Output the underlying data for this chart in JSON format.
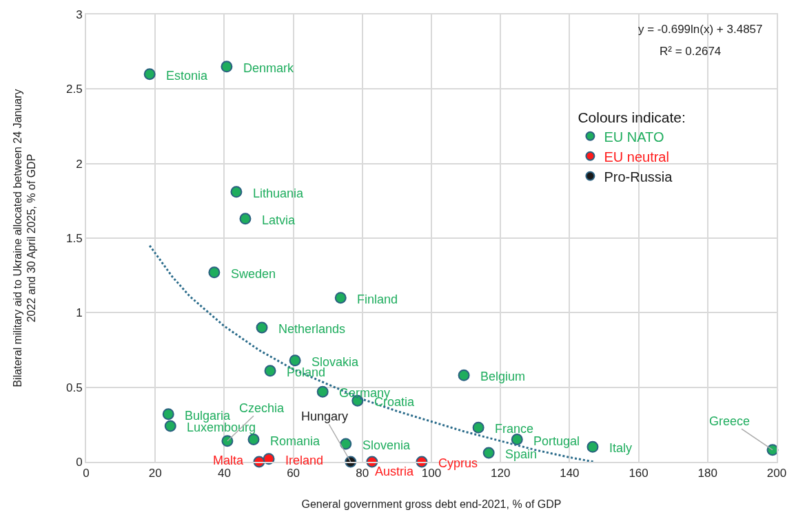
{
  "chart_data": {
    "type": "scatter",
    "xlabel": "General government gross debt end-2021, % of GDP",
    "ylabel": "Bilateral military aid to Ukraine allocated between 24 January 2022 and 30 April 2025, % of GDP",
    "legend_title": "Colours indicate:",
    "legend": "top right",
    "grid": true,
    "marker": "circle",
    "xlim": [
      0,
      200
    ],
    "xticks": [
      0,
      20,
      40,
      60,
      80,
      100,
      120,
      140,
      160,
      180,
      200
    ],
    "ylim": [
      0,
      3
    ],
    "yticks": [
      0,
      0.5,
      1,
      1.5,
      2,
      2.5,
      3
    ],
    "series": [
      {
        "name": "EU NATO",
        "color": "#1fad5e",
        "x": [
          18.4,
          40.7,
          43.5,
          46.1,
          37.1,
          73.7,
          50.9,
          60.5,
          53.3,
          109.4,
          68.5,
          78.6,
          23.8,
          24.4,
          113.6,
          40.9,
          48.5,
          75.2,
          124.8,
          116.6,
          146.7,
          198.8
        ],
        "values": [
          2.6,
          2.65,
          1.81,
          1.63,
          1.27,
          1.1,
          0.9,
          0.68,
          0.61,
          0.58,
          0.47,
          0.41,
          0.32,
          0.24,
          0.23,
          0.14,
          0.15,
          0.12,
          0.15,
          0.06,
          0.1,
          0.08
        ]
      },
      {
        "name": "EU neutral",
        "color": "#ff1a1a",
        "x": [
          50.1,
          52.9,
          82.8,
          97.2
        ],
        "values": [
          0,
          0.02,
          0,
          0
        ]
      },
      {
        "name": "Pro-Russia",
        "color": "#1a1a1a",
        "x": [
          76.6
        ],
        "values": [
          0
        ]
      },
      {
        "type": "line",
        "color": "#2a6b8a",
        "line_style": "dotted",
        "marker": "none",
        "x": [
          18.4,
          25,
          30,
          40,
          50,
          60,
          70,
          80,
          90,
          100,
          110,
          120,
          130,
          140,
          147
        ],
        "values": [
          1.45,
          1.24,
          1.11,
          0.91,
          0.75,
          0.62,
          0.52,
          0.42,
          0.34,
          0.27,
          0.2,
          0.14,
          0.08,
          0.03,
          0
        ]
      }
    ],
    "annotations": [
      {
        "text": "Estonia",
        "x": 18.4,
        "y": 2.6
      },
      {
        "text": "Denmark",
        "x": 40.7,
        "y": 2.65
      },
      {
        "text": "Lithuania",
        "x": 43.5,
        "y": 1.81
      },
      {
        "text": "Latvia",
        "x": 46.1,
        "y": 1.63
      },
      {
        "text": "Sweden",
        "x": 37.1,
        "y": 1.27
      },
      {
        "text": "Finland",
        "x": 73.7,
        "y": 1.1
      },
      {
        "text": "Netherlands",
        "x": 50.9,
        "y": 0.9
      },
      {
        "text": "Slovakia",
        "x": 60.5,
        "y": 0.68
      },
      {
        "text": "Poland",
        "x": 53.3,
        "y": 0.61
      },
      {
        "text": "Belgium",
        "x": 109.4,
        "y": 0.58
      },
      {
        "text": "Germany",
        "x": 68.5,
        "y": 0.47
      },
      {
        "text": "Croatia",
        "x": 78.6,
        "y": 0.41
      },
      {
        "text": "Bulgaria",
        "x": 23.8,
        "y": 0.32
      },
      {
        "text": "Luxembourg",
        "x": 24.4,
        "y": 0.24
      },
      {
        "text": "France",
        "x": 113.6,
        "y": 0.23
      },
      {
        "text": "Czechia",
        "x": 40.9,
        "y": 0.14
      },
      {
        "text": "Romania",
        "x": 48.5,
        "y": 0.15
      },
      {
        "text": "Slovenia",
        "x": 75.2,
        "y": 0.12
      },
      {
        "text": "Portugal",
        "x": 124.8,
        "y": 0.15
      },
      {
        "text": "Spain",
        "x": 116.6,
        "y": 0.06
      },
      {
        "text": "Italy",
        "x": 146.7,
        "y": 0.1
      },
      {
        "text": "Greece",
        "x": 198.8,
        "y": 0.08
      },
      {
        "text": "Malta",
        "x": 50.1,
        "y": 0
      },
      {
        "text": "Ireland",
        "x": 52.9,
        "y": 0.02
      },
      {
        "text": "Austria",
        "x": 82.8,
        "y": 0
      },
      {
        "text": "Cyprus",
        "x": 97.2,
        "y": 0
      },
      {
        "text": "Hungary",
        "x": 76.6,
        "y": 0
      },
      "y = -0.699ln(x) + 3.4857",
      "R² = 0.2674"
    ]
  }
}
